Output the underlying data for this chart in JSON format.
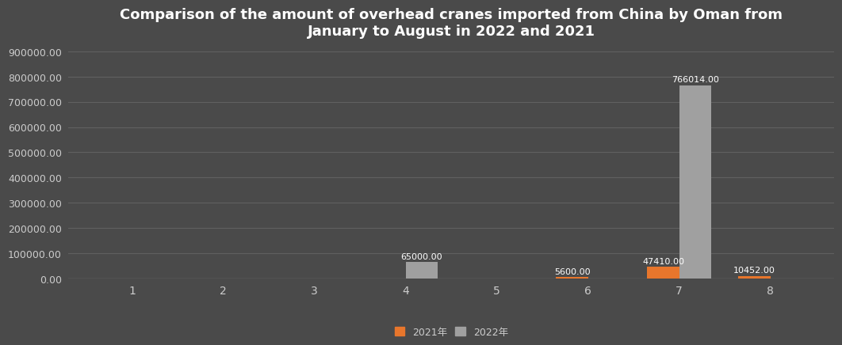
{
  "title": "Comparison of the amount of overhead cranes imported from China by Oman from\nJanuary to August in 2022 and 2021",
  "categories": [
    1,
    2,
    3,
    4,
    5,
    6,
    7,
    8
  ],
  "values_2021": [
    0,
    0,
    0,
    0,
    0,
    5600,
    47410,
    10452
  ],
  "values_2022": [
    0,
    0,
    0,
    65000,
    0,
    0,
    766014,
    0
  ],
  "bar_color_2021": "#E8762C",
  "bar_color_2022": "#A0A0A0",
  "background_color": "#4a4a4a",
  "plot_bg_color": "#4a4a4a",
  "title_color": "#FFFFFF",
  "tick_color": "#CCCCCC",
  "grid_color": "#606060",
  "ylim": [
    0,
    900000
  ],
  "yticks": [
    0,
    100000,
    200000,
    300000,
    400000,
    500000,
    600000,
    700000,
    800000,
    900000
  ],
  "legend_2021": "2021年",
  "legend_2022": "2022年",
  "bar_width": 0.35,
  "label_color": "#FFFFFF",
  "label_fontsize": 8,
  "title_fontsize": 13
}
